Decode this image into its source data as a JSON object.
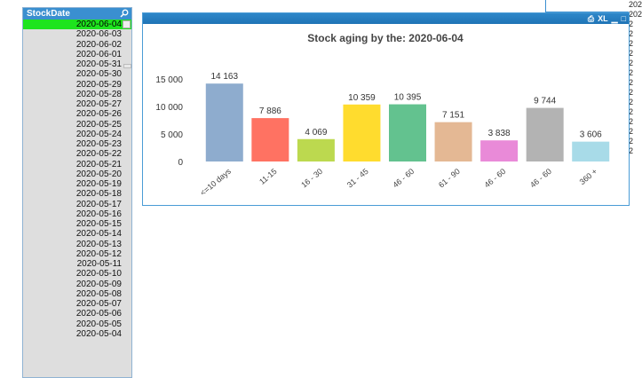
{
  "listbox": {
    "title": "StockDate",
    "items": [
      "2020-06-04",
      "2020-06-03",
      "2020-06-02",
      "2020-06-01",
      "2020-05-31",
      "2020-05-30",
      "2020-05-29",
      "2020-05-28",
      "2020-05-27",
      "2020-05-26",
      "2020-05-25",
      "2020-05-24",
      "2020-05-23",
      "2020-05-22",
      "2020-05-21",
      "2020-05-20",
      "2020-05-19",
      "2020-05-18",
      "2020-05-17",
      "2020-05-16",
      "2020-05-15",
      "2020-05-14",
      "2020-05-13",
      "2020-05-12",
      "2020-05-11",
      "2020-05-10",
      "2020-05-09",
      "2020-05-08",
      "2020-05-07",
      "2020-05-06",
      "2020-05-05",
      "2020-05-04"
    ],
    "selected": "2020-06-04",
    "selected_color": "#1ee41e"
  },
  "right_column": [
    "202",
    "202",
    "2",
    "2",
    "2",
    "2",
    "2",
    "2",
    "2",
    "2",
    "2",
    "2",
    "2",
    "2",
    "2",
    "2"
  ],
  "chart_caption": {
    "icons": [
      "print-icon",
      "xl-icon",
      "minimize-icon",
      "maximize-icon"
    ],
    "xl_label": "XL"
  },
  "chart_data": {
    "type": "bar",
    "title": "Stock aging by the: 2020-06-04",
    "categories": [
      "<=10 days",
      "11-15",
      "16 - 30",
      "31 - 45",
      "46 - 60",
      "61 - 90",
      "46 - 60",
      "46 - 60",
      "360 +"
    ],
    "values": [
      14163,
      7886,
      4069,
      10359,
      10395,
      7151,
      3838,
      9744,
      3606
    ],
    "value_labels": [
      "14 163",
      "7 886",
      "4 069",
      "10 359",
      "10 395",
      "7 151",
      "3 838",
      "9 744",
      "3 606"
    ],
    "colors": [
      "#8eacce",
      "#ff7262",
      "#bcd94f",
      "#ffdc2e",
      "#63c28f",
      "#e4b894",
      "#e98ad8",
      "#b3b3b3",
      "#a8dbe8"
    ],
    "yticks": [
      0,
      5000,
      10000,
      15000
    ],
    "ytick_labels": [
      "0",
      "5 000",
      "10 000",
      "15 000"
    ],
    "ylim": [
      0,
      15000
    ],
    "xlabel": "",
    "ylabel": "",
    "grid": false,
    "legend": "none"
  }
}
